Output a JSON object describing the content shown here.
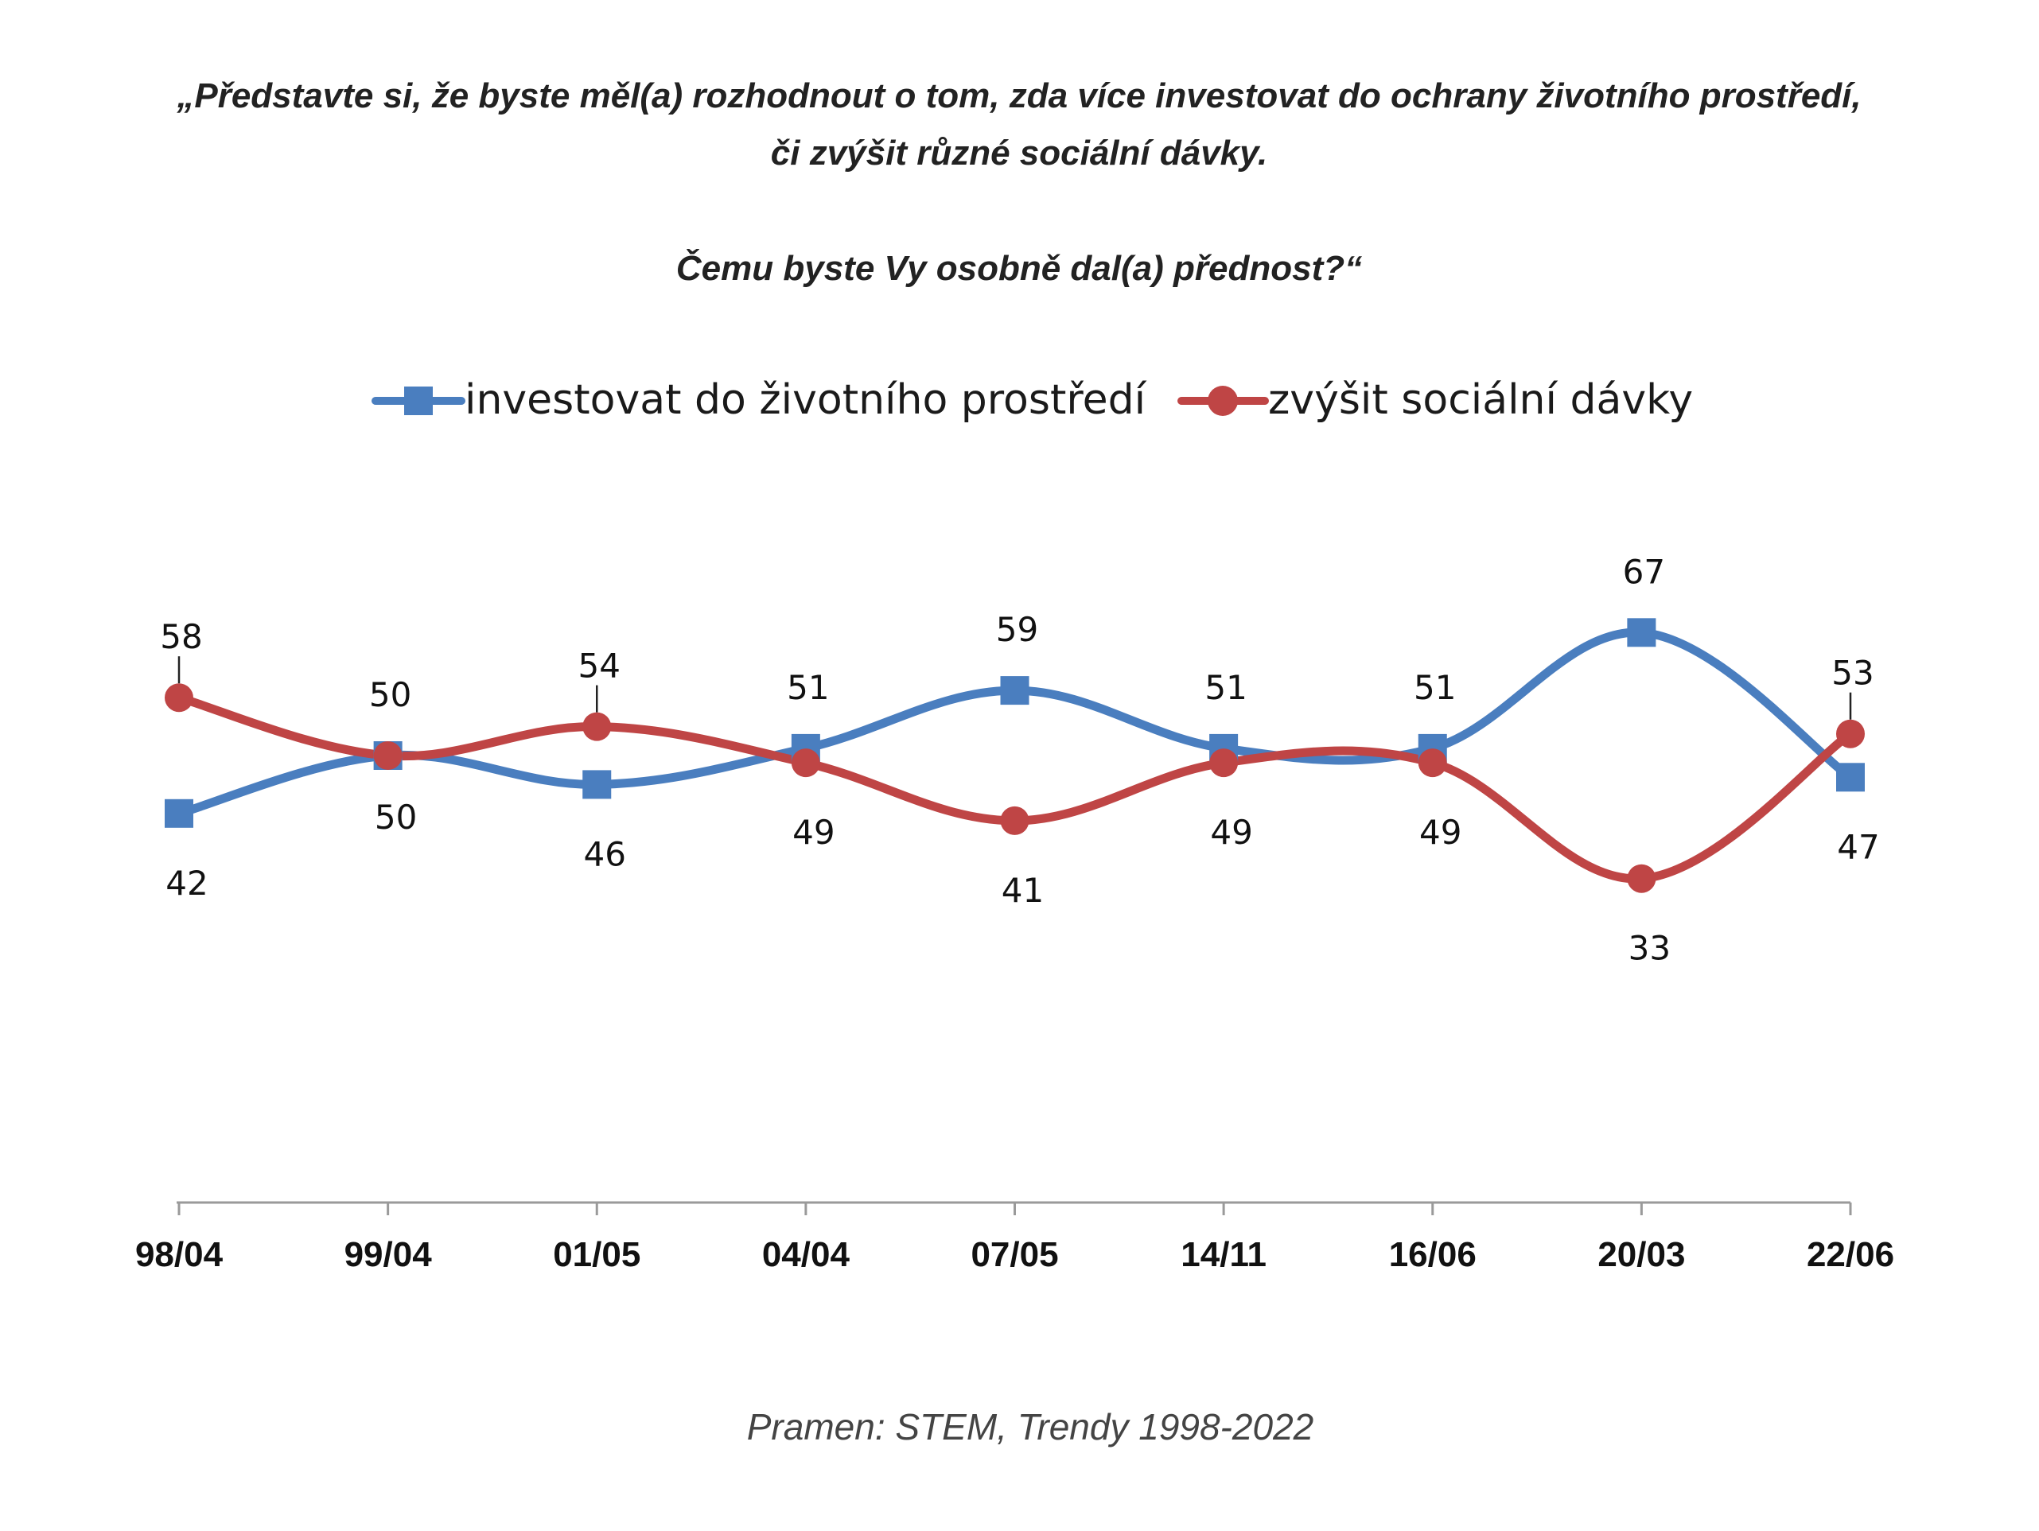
{
  "chart_data": {
    "type": "line",
    "title_lines": [
      "„Představte si, že byste měl(a) rozhodnout o tom, zda více investovat do ochrany životního prostředí,",
      "či zvýšit různé sociální dávky.",
      "Čemu byste Vy osobně dal(a) přednost?“"
    ],
    "categories": [
      "98/04",
      "99/04",
      "01/05",
      "04/04",
      "07/05",
      "14/11",
      "16/06",
      "20/03",
      "22/06"
    ],
    "series": [
      {
        "name": "investovat do životního prostředí",
        "color": "#4a7ebf",
        "marker": "square",
        "values": [
          42,
          50,
          46,
          51,
          59,
          51,
          51,
          67,
          47
        ]
      },
      {
        "name": "zvýšit sociální dávky",
        "color": "#bf4545",
        "marker": "circle",
        "values": [
          58,
          50,
          54,
          49,
          41,
          49,
          49,
          33,
          53
        ]
      }
    ],
    "legend_position": "top-center",
    "grid": false,
    "source": "Pramen: STEM, Trendy 1998-2022"
  }
}
